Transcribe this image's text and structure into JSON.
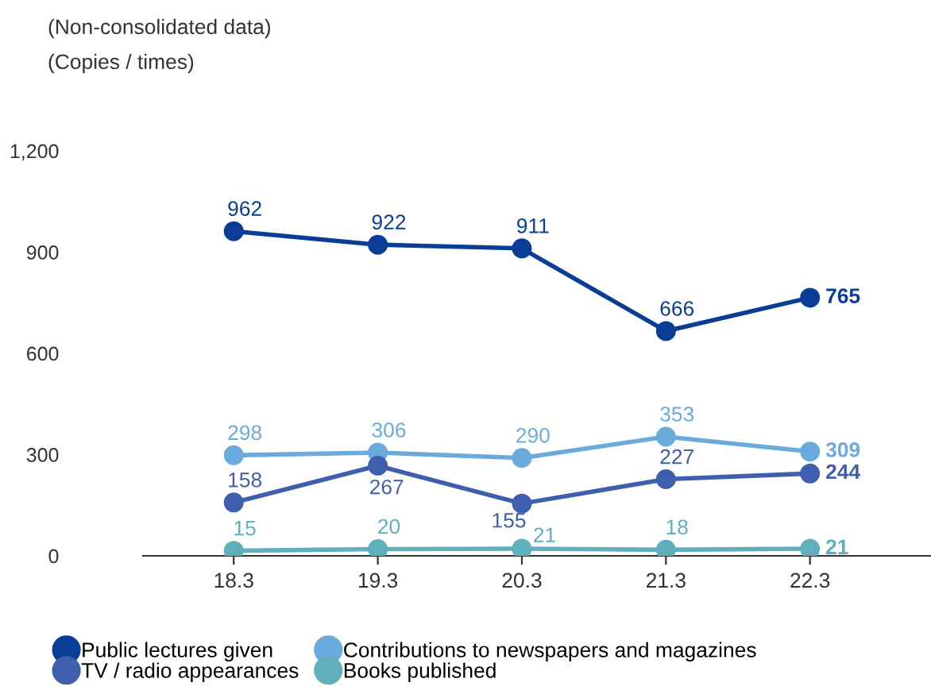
{
  "chart_data": {
    "type": "line",
    "subtitle": "(Non-consolidated data)",
    "ylabel": "(Copies / times)",
    "categories": [
      "18.3",
      "19.3",
      "20.3",
      "21.3",
      "22.3"
    ],
    "series": [
      {
        "name": "Public lectures given",
        "color": "#0a3d96",
        "values": [
          962,
          922,
          911,
          666,
          765
        ]
      },
      {
        "name": "Contributions to newspapers and magazines",
        "color": "#6aaadc",
        "values": [
          298,
          306,
          290,
          353,
          309
        ]
      },
      {
        "name": "TV / radio appearances",
        "color": "#3f5fae",
        "values": [
          158,
          267,
          155,
          227,
          244
        ]
      },
      {
        "name": "Books published",
        "color": "#5fafbd",
        "values": [
          15,
          20,
          21,
          18,
          21
        ]
      }
    ],
    "ylim": [
      0,
      1200
    ],
    "yticks": [
      0,
      300,
      600,
      900,
      {
        "value": 1200,
        "label": "1,200"
      }
    ],
    "marker": "circle",
    "line_style": "solid",
    "data_labels": true,
    "grid": false,
    "legend": "bottom"
  }
}
